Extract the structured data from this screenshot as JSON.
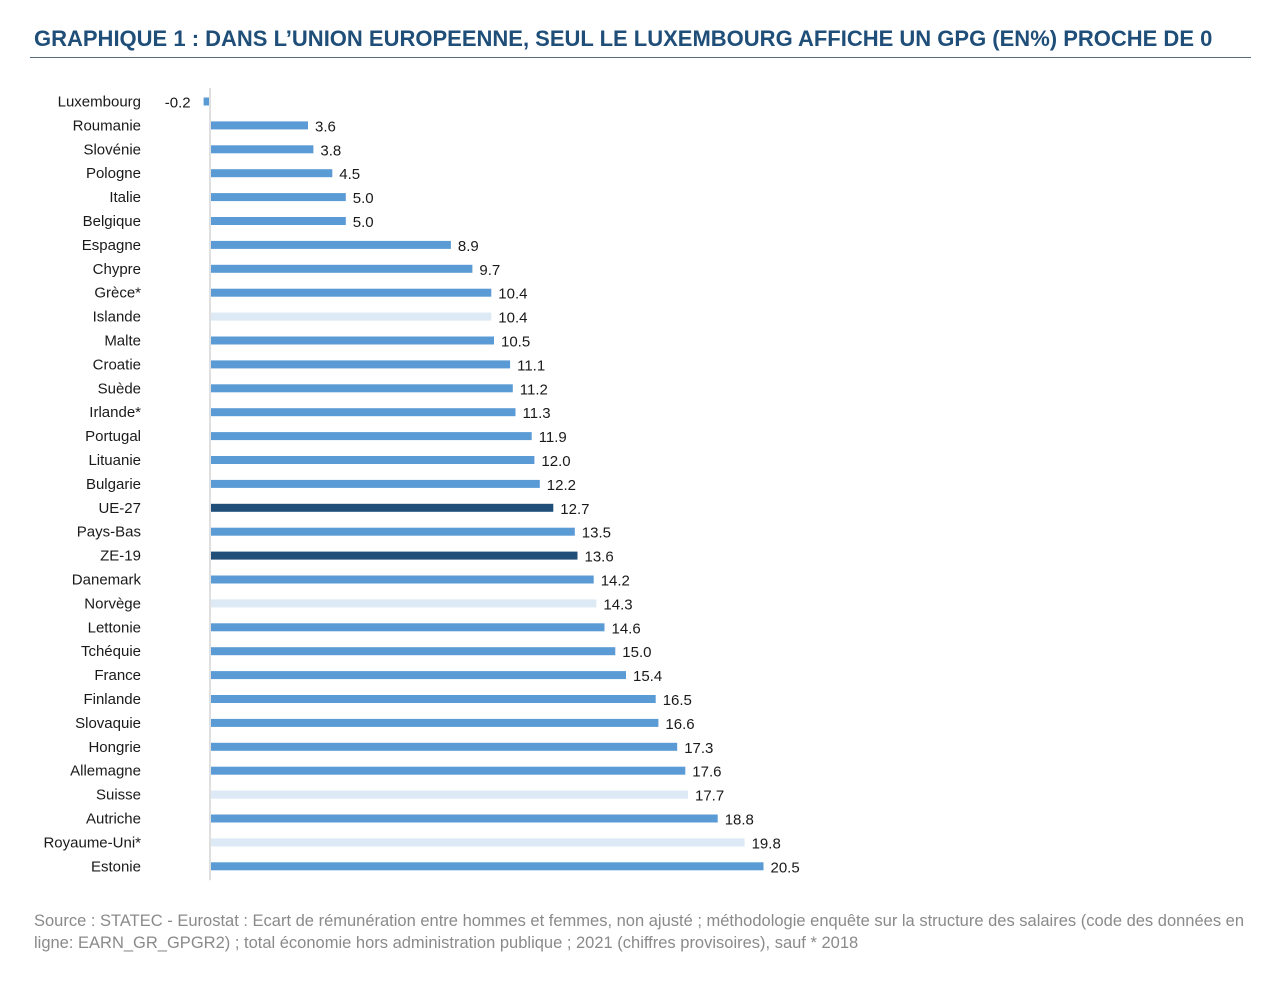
{
  "header": {
    "title": "GRAPHIQUE 1 : DANS L’UNION EUROPEENNE, SEUL LE LUXEMBOURG AFFICHE UN GPG (EN%) PROCHE DE 0"
  },
  "footer": {
    "source": "Source : STATEC - Eurostat : Ecart de rémunération entre hommes et femmes, non ajusté ; méthodologie enquête sur la structure des salaires (code des données en ligne: EARN_GR_GPGR2) ; total économie hors administration publique ; 2021 (chiffres provisoires), sauf * 2018"
  },
  "colors": {
    "eu_member": "#5b9bd5",
    "aggregate": "#1f4e79",
    "non_eu": "#dde9f5",
    "axis": "#bfbfbf"
  },
  "chart_data": {
    "type": "bar",
    "orientation": "horizontal",
    "title": "GRAPHIQUE 1 : DANS L’UNION EUROPEENNE, SEUL LE LUXEMBOURG AFFICHE UN GPG (EN%) PROCHE DE 0",
    "xlabel": "",
    "ylabel": "",
    "xlim": [
      -0.2,
      20.5
    ],
    "grid": false,
    "legend": "none",
    "categories": [
      "Luxembourg",
      "Roumanie",
      "Slovénie",
      "Pologne",
      "Italie",
      "Belgique",
      "Espagne",
      "Chypre",
      "Grèce*",
      "Islande",
      "Malte",
      "Croatie",
      "Suède",
      "Irlande*",
      "Portugal",
      "Lituanie",
      "Bulgarie",
      "UE-27",
      "Pays-Bas",
      "ZE-19",
      "Danemark",
      "Norvège",
      "Lettonie",
      "Tchéquie",
      "France",
      "Finlande",
      "Slovaquie",
      "Hongrie",
      "Allemagne",
      "Suisse",
      "Autriche",
      "Royaume-Uni*",
      "Estonie"
    ],
    "values": [
      -0.2,
      3.6,
      3.8,
      4.5,
      5.0,
      5.0,
      8.9,
      9.7,
      10.4,
      10.4,
      10.5,
      11.1,
      11.2,
      11.3,
      11.9,
      12.0,
      12.2,
      12.7,
      13.5,
      13.6,
      14.2,
      14.3,
      14.6,
      15.0,
      15.4,
      16.5,
      16.6,
      17.3,
      17.6,
      17.7,
      18.8,
      19.8,
      20.5
    ],
    "value_labels": [
      "-0.2",
      "3.6",
      "3.8",
      "4.5",
      "5.0",
      "5.0",
      "8.9",
      "9.7",
      "10.4",
      "10.4",
      "10.5",
      "11.1",
      "11.2",
      "11.3",
      "11.9",
      "12.0",
      "12.2",
      "12.7",
      "13.5",
      "13.6",
      "14.2",
      "14.3",
      "14.6",
      "15.0",
      "15.4",
      "16.5",
      "16.6",
      "17.3",
      "17.6",
      "17.7",
      "18.8",
      "19.8",
      "20.5"
    ],
    "groups": [
      "eu_member",
      "eu_member",
      "eu_member",
      "eu_member",
      "eu_member",
      "eu_member",
      "eu_member",
      "eu_member",
      "eu_member",
      "non_eu",
      "eu_member",
      "eu_member",
      "eu_member",
      "eu_member",
      "eu_member",
      "eu_member",
      "eu_member",
      "aggregate",
      "eu_member",
      "aggregate",
      "eu_member",
      "non_eu",
      "eu_member",
      "eu_member",
      "eu_member",
      "eu_member",
      "eu_member",
      "eu_member",
      "eu_member",
      "non_eu",
      "eu_member",
      "non_eu",
      "eu_member"
    ]
  }
}
